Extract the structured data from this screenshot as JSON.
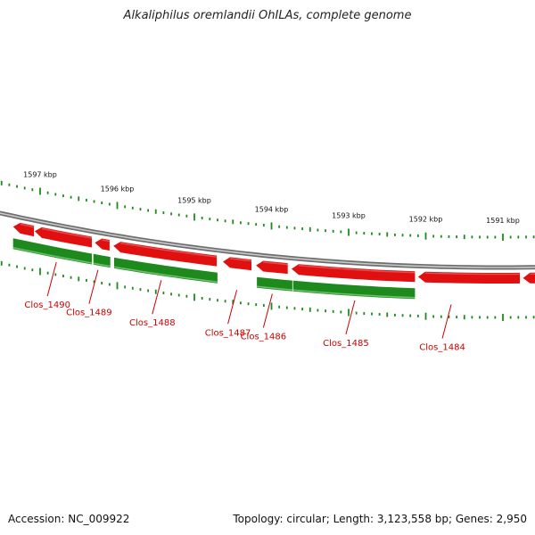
{
  "title": "Alkaliphilus oremlandii OhILAs, complete genome",
  "footer": {
    "accession": "Accession: NC_009922",
    "summary": "Topology: circular; Length: 3,123,558 bp; Genes: 2,950"
  },
  "colors": {
    "forward_gene": "#e01010",
    "reverse_gene": "#1e8a1e",
    "backbone": "#888888",
    "label": "#cc0000",
    "tick": "#1e8a1e"
  },
  "ruler": {
    "labels": [
      "1597 kbp",
      "1596 kbp",
      "1595 kbp",
      "1594 kbp",
      "1593 kbp",
      "1592 kbp",
      "1591 kbp"
    ],
    "positions_kbp": [
      1597,
      1596,
      1595,
      1594,
      1593,
      1592,
      1591
    ],
    "minor_per_major": 9
  },
  "genes": {
    "forward": [
      {
        "start": 1597.35,
        "end": 1597.08
      },
      {
        "start": 1597.07,
        "end": 1596.33
      },
      {
        "start": 1596.29,
        "end": 1596.1
      },
      {
        "start": 1596.05,
        "end": 1594.71
      },
      {
        "start": 1594.63,
        "end": 1594.26
      },
      {
        "start": 1594.2,
        "end": 1593.79
      },
      {
        "start": 1593.74,
        "end": 1592.14
      },
      {
        "start": 1592.1,
        "end": 1590.78
      },
      {
        "start": 1590.74,
        "end": 1590.4
      }
    ],
    "reverse": [
      {
        "start": 1597.35,
        "end": 1596.33
      },
      {
        "start": 1596.31,
        "end": 1596.09
      },
      {
        "start": 1596.04,
        "end": 1594.7
      },
      {
        "start": 1594.19,
        "end": 1593.73
      },
      {
        "start": 1593.72,
        "end": 1592.14
      }
    ]
  },
  "labels": [
    {
      "text": "Clos_1490",
      "pos": 1596.79
    },
    {
      "text": "Clos_1489",
      "pos": 1596.25
    },
    {
      "text": "Clos_1488",
      "pos": 1595.43
    },
    {
      "text": "Clos_1487",
      "pos": 1594.45
    },
    {
      "text": "Clos_1486",
      "pos": 1593.99
    },
    {
      "text": "Clos_1485",
      "pos": 1592.92
    },
    {
      "text": "Clos_1484",
      "pos": 1591.67
    }
  ]
}
